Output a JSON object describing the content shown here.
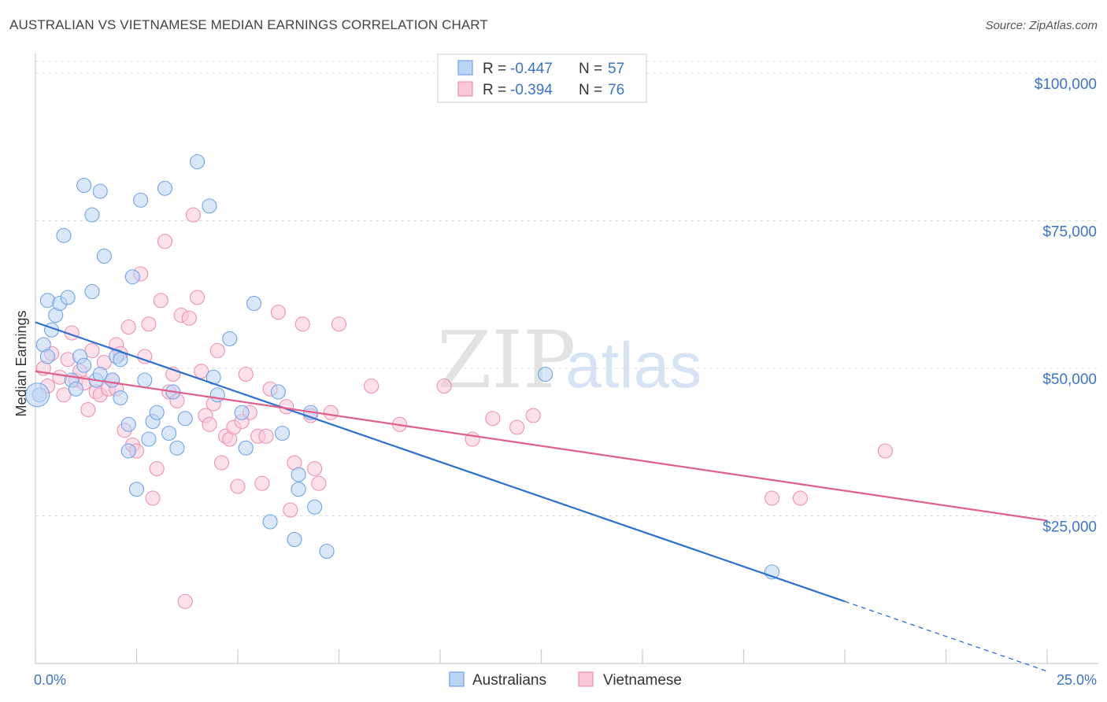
{
  "title": "AUSTRALIAN VS VIETNAMESE MEDIAN EARNINGS CORRELATION CHART",
  "source": "Source: ZipAtlas.com",
  "watermark": {
    "zip": "ZIP",
    "atlas": "atlas"
  },
  "legend": {
    "rows": [
      {
        "r_label": "R =",
        "r_value": "-0.447",
        "n_label": "N =",
        "n_value": "57",
        "color": "#6ea3e8"
      },
      {
        "r_label": "R =",
        "r_value": "-0.394",
        "n_label": "N =",
        "n_value": "76",
        "color": "#f08fb0"
      }
    ]
  },
  "chart_data": {
    "type": "scatter",
    "ylabel": "Median Earnings",
    "x_tick_labels": [
      "0.0%",
      "25.0%"
    ],
    "y_tick_labels": [
      "$25,000",
      "$50,000",
      "$75,000",
      "$100,000"
    ],
    "y_ticks": [
      25000,
      50000,
      75000,
      100000
    ],
    "xlim": [
      0,
      25
    ],
    "ylim": [
      0,
      102000
    ],
    "grid": true,
    "series": [
      {
        "name": "Australians",
        "color": "#6ea3e8",
        "line_color": "#2d6fd1",
        "trend": {
          "x0": 0.0,
          "y0": 57800,
          "x1": 20.0,
          "y1": 10500,
          "dash_to_x": 25.0
        },
        "points": [
          [
            0.1,
            45500
          ],
          [
            0.2,
            54000
          ],
          [
            0.3,
            52000
          ],
          [
            0.3,
            61500
          ],
          [
            0.4,
            56500
          ],
          [
            0.5,
            59000
          ],
          [
            0.6,
            61000
          ],
          [
            0.7,
            72500
          ],
          [
            0.8,
            62000
          ],
          [
            0.9,
            48000
          ],
          [
            1.0,
            46500
          ],
          [
            1.1,
            52000
          ],
          [
            1.2,
            50500
          ],
          [
            1.2,
            81000
          ],
          [
            1.4,
            76000
          ],
          [
            1.4,
            63000
          ],
          [
            1.5,
            48000
          ],
          [
            1.6,
            49000
          ],
          [
            1.6,
            80000
          ],
          [
            1.7,
            69000
          ],
          [
            1.9,
            48000
          ],
          [
            2.0,
            52000
          ],
          [
            2.1,
            51500
          ],
          [
            2.1,
            45000
          ],
          [
            2.3,
            40500
          ],
          [
            2.3,
            36000
          ],
          [
            2.4,
            65500
          ],
          [
            2.5,
            29500
          ],
          [
            2.6,
            78500
          ],
          [
            2.7,
            48000
          ],
          [
            2.8,
            38000
          ],
          [
            2.9,
            41000
          ],
          [
            3.0,
            42500
          ],
          [
            3.2,
            80500
          ],
          [
            3.3,
            39000
          ],
          [
            3.4,
            46000
          ],
          [
            3.5,
            36500
          ],
          [
            3.7,
            41500
          ],
          [
            4.0,
            85000
          ],
          [
            4.3,
            77500
          ],
          [
            4.4,
            48500
          ],
          [
            4.5,
            45500
          ],
          [
            4.8,
            55000
          ],
          [
            5.1,
            42500
          ],
          [
            5.2,
            36500
          ],
          [
            5.4,
            61000
          ],
          [
            5.8,
            24000
          ],
          [
            6.0,
            46000
          ],
          [
            6.1,
            39000
          ],
          [
            6.4,
            21000
          ],
          [
            6.5,
            29500
          ],
          [
            6.5,
            32000
          ],
          [
            6.8,
            42500
          ],
          [
            6.9,
            26500
          ],
          [
            7.2,
            19000
          ],
          [
            12.6,
            49000
          ],
          [
            18.2,
            15500
          ]
        ]
      },
      {
        "name": "Vietnamese",
        "color": "#f08fb0",
        "line_color": "#e0608c",
        "trend": {
          "x0": 0.0,
          "y0": 49500,
          "x1": 25.0,
          "y1": 24200
        },
        "points": [
          [
            0.2,
            50000
          ],
          [
            0.3,
            47000
          ],
          [
            0.4,
            52500
          ],
          [
            0.6,
            48500
          ],
          [
            0.7,
            45500
          ],
          [
            0.8,
            51500
          ],
          [
            0.9,
            56000
          ],
          [
            1.0,
            48000
          ],
          [
            1.1,
            49500
          ],
          [
            1.2,
            47500
          ],
          [
            1.3,
            43000
          ],
          [
            1.4,
            53000
          ],
          [
            1.5,
            46000
          ],
          [
            1.6,
            45500
          ],
          [
            1.7,
            51000
          ],
          [
            1.8,
            46500
          ],
          [
            1.9,
            48000
          ],
          [
            2.0,
            46500
          ],
          [
            2.0,
            54000
          ],
          [
            2.1,
            52500
          ],
          [
            2.2,
            39500
          ],
          [
            2.3,
            57000
          ],
          [
            2.4,
            37000
          ],
          [
            2.5,
            36000
          ],
          [
            2.6,
            66000
          ],
          [
            2.7,
            52000
          ],
          [
            2.8,
            57500
          ],
          [
            2.9,
            28000
          ],
          [
            3.0,
            33000
          ],
          [
            3.1,
            61500
          ],
          [
            3.2,
            71500
          ],
          [
            3.3,
            46000
          ],
          [
            3.4,
            49000
          ],
          [
            3.5,
            44500
          ],
          [
            3.6,
            59000
          ],
          [
            3.7,
            10500
          ],
          [
            3.8,
            58500
          ],
          [
            3.9,
            76000
          ],
          [
            4.0,
            62000
          ],
          [
            4.1,
            49500
          ],
          [
            4.2,
            42000
          ],
          [
            4.3,
            40500
          ],
          [
            4.4,
            44000
          ],
          [
            4.5,
            53000
          ],
          [
            4.6,
            34000
          ],
          [
            4.7,
            38500
          ],
          [
            4.8,
            38000
          ],
          [
            4.9,
            40000
          ],
          [
            5.0,
            30000
          ],
          [
            5.1,
            41000
          ],
          [
            5.2,
            49000
          ],
          [
            5.3,
            42500
          ],
          [
            5.5,
            38500
          ],
          [
            5.6,
            30500
          ],
          [
            5.7,
            38500
          ],
          [
            5.8,
            46500
          ],
          [
            6.0,
            59500
          ],
          [
            6.2,
            43500
          ],
          [
            6.3,
            26000
          ],
          [
            6.4,
            34000
          ],
          [
            6.6,
            57500
          ],
          [
            6.8,
            42000
          ],
          [
            6.9,
            33000
          ],
          [
            7.0,
            30500
          ],
          [
            7.3,
            42500
          ],
          [
            7.5,
            57500
          ],
          [
            8.3,
            47000
          ],
          [
            9.0,
            40500
          ],
          [
            10.1,
            47000
          ],
          [
            10.8,
            38000
          ],
          [
            11.3,
            41500
          ],
          [
            11.9,
            40000
          ],
          [
            12.3,
            42000
          ],
          [
            18.2,
            28000
          ],
          [
            18.9,
            28000
          ],
          [
            21.0,
            36000
          ]
        ]
      }
    ]
  }
}
